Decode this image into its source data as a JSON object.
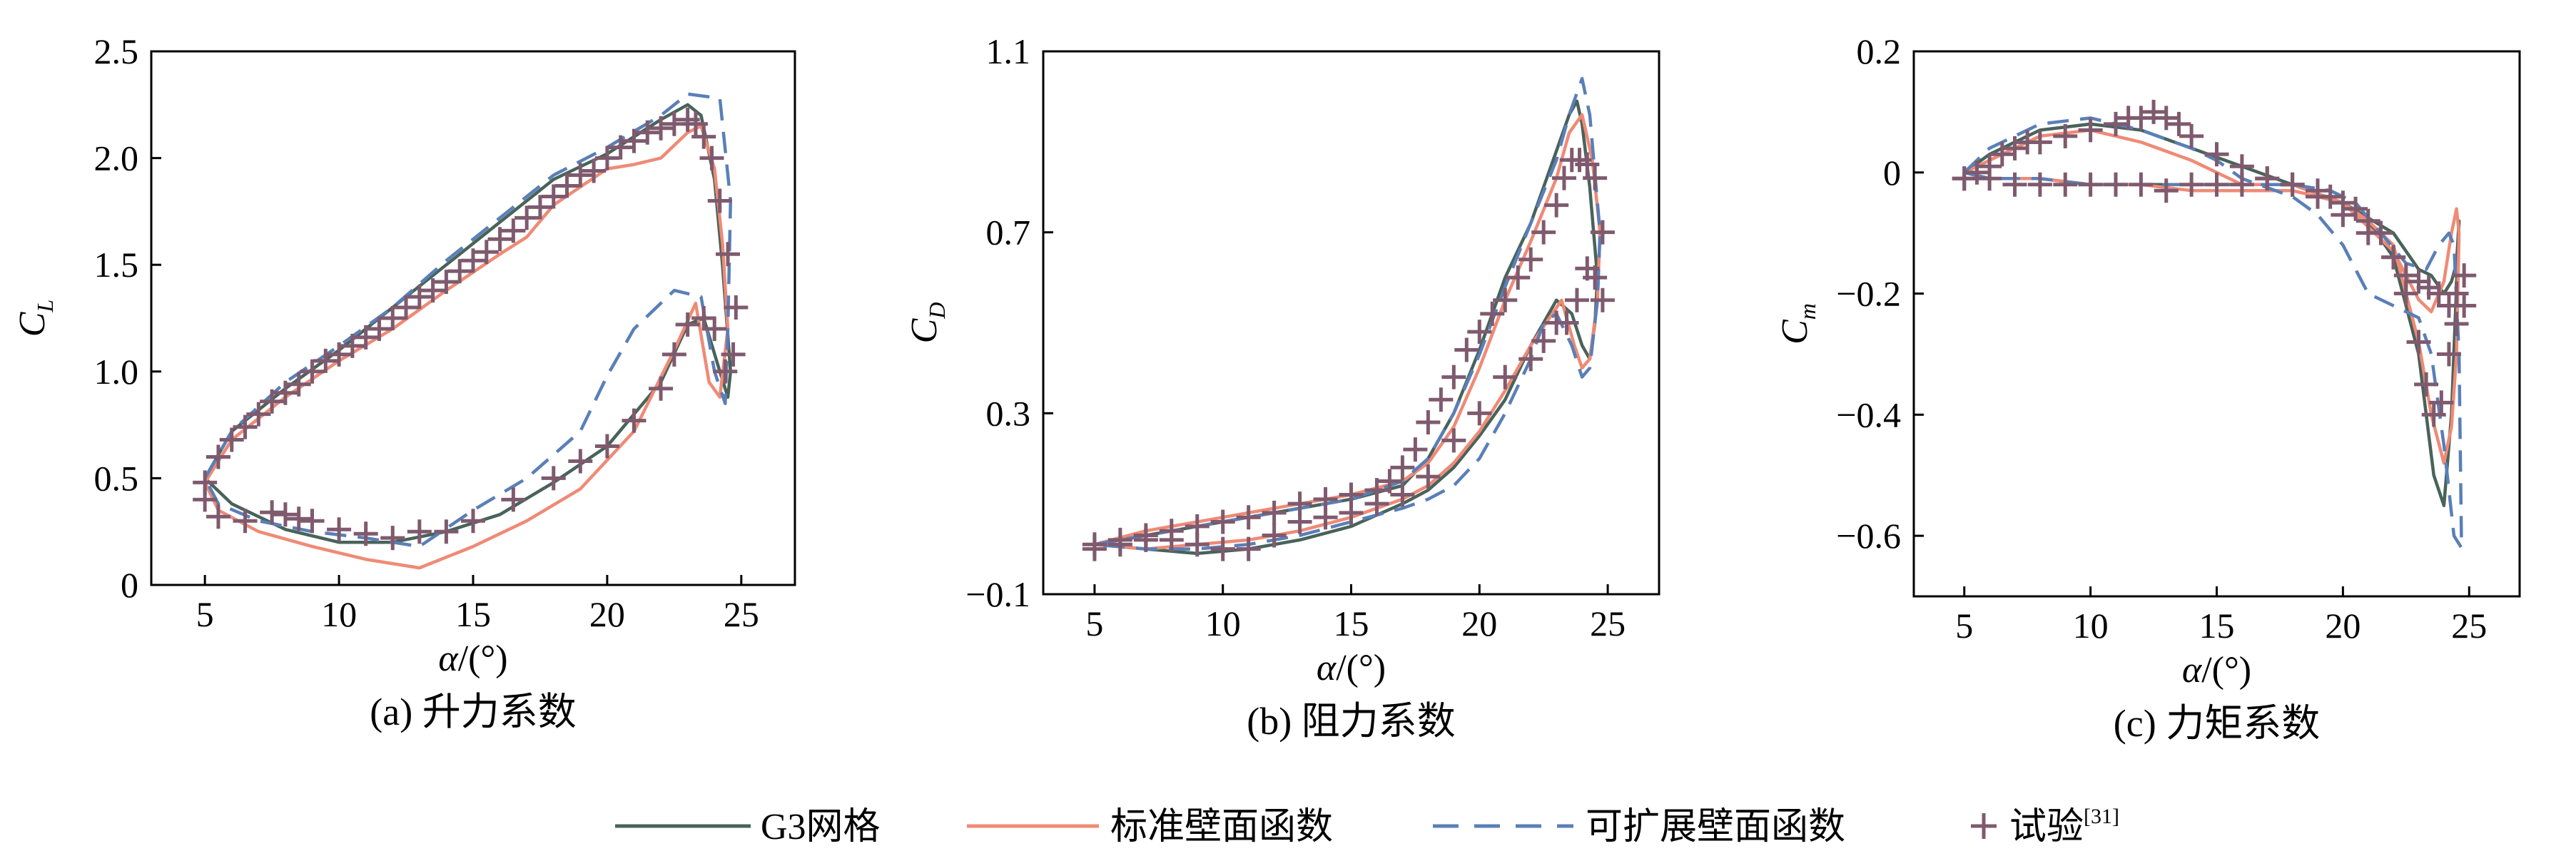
{
  "colors": {
    "g3": "#48635a",
    "standard": "#ef8a76",
    "scalable": "#5a7fb8",
    "exp": "#7f5a6e"
  },
  "legend": {
    "g3": "G3网格",
    "standard": "标准壁面函数",
    "scalable": "可扩展壁面函数",
    "exp": "试验",
    "exp_ref": "[31]"
  },
  "chart_data": [
    {
      "type": "line",
      "caption": "(a) 升力系数",
      "xlabel_sym": "α",
      "xlabel_unit": "/(°)",
      "ylabel_main": "C",
      "ylabel_sub": "L",
      "xlim": [
        3,
        27
      ],
      "ylim": [
        0,
        2.5
      ],
      "xticks": [
        5,
        10,
        15,
        20,
        25
      ],
      "yticks": [
        0,
        0.5,
        1.0,
        1.5,
        2.0,
        2.5
      ],
      "ytick_labels": [
        "0",
        "0.5",
        "1.0",
        "1.5",
        "2.0",
        "2.5"
      ],
      "series": [
        {
          "key": "g3",
          "dash": "solid",
          "x": [
            5,
            6,
            8,
            10,
            12,
            14,
            16,
            18,
            20,
            22,
            23,
            23.5,
            24,
            24.3,
            24.6,
            24.5,
            24.2,
            23.6,
            23,
            22,
            20,
            18,
            16,
            14,
            12,
            10,
            8,
            6,
            5
          ],
          "y": [
            0.5,
            0.72,
            0.92,
            1.1,
            1.3,
            1.5,
            1.7,
            1.9,
            2.02,
            2.18,
            2.25,
            2.2,
            1.9,
            1.5,
            1.0,
            0.88,
            1.0,
            1.25,
            1.22,
            0.95,
            0.65,
            0.48,
            0.33,
            0.25,
            0.2,
            0.2,
            0.26,
            0.38,
            0.5
          ]
        },
        {
          "key": "standard",
          "dash": "solid",
          "x": [
            5,
            6,
            8,
            10,
            12,
            14,
            16,
            17,
            18,
            20,
            21,
            22,
            23,
            23.5,
            24,
            24.3,
            24.5,
            24.2,
            23.8,
            23.3,
            22.5,
            21,
            19,
            17,
            15,
            13,
            11,
            9,
            7,
            5.5,
            5
          ],
          "y": [
            0.48,
            0.68,
            0.88,
            1.05,
            1.2,
            1.38,
            1.55,
            1.63,
            1.78,
            1.95,
            1.97,
            2.0,
            2.12,
            2.15,
            1.95,
            1.6,
            1.2,
            0.88,
            0.95,
            1.32,
            1.1,
            0.72,
            0.45,
            0.3,
            0.18,
            0.08,
            0.12,
            0.18,
            0.25,
            0.35,
            0.48
          ]
        },
        {
          "key": "scalable",
          "dash": "dash",
          "x": [
            5,
            6,
            8,
            10,
            12,
            14,
            16,
            18,
            20,
            22,
            23,
            24.2,
            24.6,
            24.5,
            24.4,
            24,
            23.5,
            22.5,
            21,
            20,
            19,
            17,
            15,
            13,
            11,
            9,
            7,
            5.5,
            5
          ],
          "y": [
            0.5,
            0.72,
            0.95,
            1.12,
            1.3,
            1.52,
            1.72,
            1.92,
            2.05,
            2.2,
            2.3,
            2.28,
            1.8,
            1.2,
            0.85,
            1.0,
            1.35,
            1.38,
            1.2,
            0.98,
            0.72,
            0.5,
            0.35,
            0.18,
            0.22,
            0.25,
            0.3,
            0.38,
            0.5
          ]
        }
      ],
      "experiment": {
        "x": [
          5.0,
          5.5,
          6.0,
          6.5,
          7.0,
          7.5,
          8.0,
          8.5,
          9.0,
          9.5,
          10.0,
          10.5,
          11.0,
          11.5,
          12.0,
          12.5,
          13.0,
          13.5,
          14.0,
          14.5,
          15.0,
          15.5,
          16.0,
          16.5,
          17.0,
          17.5,
          18.0,
          18.5,
          19.0,
          19.5,
          20.0,
          20.5,
          21.0,
          21.5,
          22.0,
          22.5,
          23.0,
          23.3,
          23.6,
          23.9,
          24.2,
          24.5,
          24.8,
          24.7,
          24.4,
          24.0,
          23.6,
          23.0,
          22.5,
          22.0,
          21.0,
          20.0,
          19.0,
          18.0,
          16.5,
          15.0,
          14.0,
          13.0,
          12.0,
          11.0,
          10.0,
          9.0,
          8.5,
          8.0,
          7.5,
          6.5,
          5.5,
          5.0
        ],
        "y": [
          0.48,
          0.6,
          0.68,
          0.74,
          0.8,
          0.86,
          0.9,
          0.94,
          1.0,
          1.05,
          1.08,
          1.12,
          1.16,
          1.2,
          1.25,
          1.3,
          1.35,
          1.38,
          1.42,
          1.47,
          1.52,
          1.56,
          1.62,
          1.66,
          1.72,
          1.77,
          1.82,
          1.87,
          1.92,
          1.94,
          2.0,
          2.05,
          2.08,
          2.12,
          2.14,
          2.16,
          2.18,
          2.16,
          2.1,
          2.0,
          1.8,
          1.55,
          1.3,
          1.08,
          1.0,
          1.2,
          1.25,
          1.22,
          1.08,
          0.92,
          0.77,
          0.65,
          0.58,
          0.5,
          0.4,
          0.3,
          0.25,
          0.25,
          0.22,
          0.24,
          0.26,
          0.3,
          0.31,
          0.33,
          0.34,
          0.3,
          0.32,
          0.4
        ]
      }
    },
    {
      "type": "line",
      "caption": "(b) 阻力系数",
      "xlabel_sym": "α",
      "xlabel_unit": "/(°)",
      "ylabel_main": "C",
      "ylabel_sub": "D",
      "xlim": [
        3,
        27
      ],
      "ylim": [
        -0.1,
        1.1
      ],
      "xticks": [
        5,
        10,
        15,
        20,
        25
      ],
      "yticks": [
        -0.1,
        0.3,
        0.7,
        1.1
      ],
      "ytick_labels": [
        "−0.1",
        "0.3",
        "0.7",
        "1.1"
      ],
      "series": [
        {
          "key": "g3",
          "dash": "solid",
          "x": [
            5,
            7,
            10,
            13,
            15,
            17,
            18,
            19,
            20,
            21,
            22,
            23,
            23.5,
            23.8,
            24,
            24.3,
            24.6,
            24.5,
            24.3,
            24,
            23.6,
            23,
            22,
            21,
            20,
            19,
            18,
            17,
            15,
            13,
            11,
            9,
            7,
            5
          ],
          "y": [
            0.01,
            0.03,
            0.06,
            0.09,
            0.11,
            0.14,
            0.2,
            0.3,
            0.44,
            0.6,
            0.72,
            0.88,
            0.96,
            0.99,
            0.94,
            0.8,
            0.6,
            0.5,
            0.42,
            0.45,
            0.52,
            0.55,
            0.45,
            0.33,
            0.25,
            0.18,
            0.13,
            0.1,
            0.05,
            0.02,
            0.0,
            -0.01,
            0.0,
            0.01
          ]
        },
        {
          "key": "standard",
          "dash": "solid",
          "x": [
            5,
            7,
            10,
            13,
            15,
            17,
            18,
            19,
            20,
            21,
            22,
            23,
            23.5,
            24,
            24.4,
            24.7,
            24.6,
            24.3,
            24.0,
            23.7,
            23.2,
            22,
            21,
            20,
            19,
            18,
            17,
            15,
            13,
            11,
            9,
            7,
            5
          ],
          "y": [
            0.01,
            0.04,
            0.07,
            0.1,
            0.12,
            0.15,
            0.19,
            0.27,
            0.4,
            0.55,
            0.68,
            0.82,
            0.92,
            0.96,
            0.86,
            0.7,
            0.55,
            0.42,
            0.4,
            0.45,
            0.55,
            0.45,
            0.35,
            0.26,
            0.19,
            0.14,
            0.11,
            0.07,
            0.04,
            0.02,
            0.01,
            0.0,
            0.01
          ]
        },
        {
          "key": "scalable",
          "dash": "dash",
          "x": [
            5,
            7,
            10,
            13,
            15,
            17,
            18,
            19,
            20,
            21,
            22,
            23,
            23.5,
            24,
            24.3,
            24.7,
            24.6,
            24.3,
            24,
            23.6,
            23,
            22.5,
            22,
            21,
            20,
            19,
            18,
            17,
            15,
            13,
            11,
            9,
            7,
            5
          ],
          "y": [
            0.01,
            0.03,
            0.06,
            0.09,
            0.11,
            0.15,
            0.2,
            0.3,
            0.43,
            0.58,
            0.72,
            0.86,
            0.96,
            1.04,
            0.96,
            0.7,
            0.55,
            0.4,
            0.38,
            0.45,
            0.52,
            0.5,
            0.42,
            0.3,
            0.2,
            0.14,
            0.11,
            0.09,
            0.06,
            0.03,
            0.01,
            0.0,
            0.0,
            0.01
          ]
        }
      ],
      "experiment": {
        "x": [
          5.0,
          6.0,
          7.0,
          8.0,
          9.0,
          10.0,
          11.0,
          12.0,
          13.0,
          14.0,
          15.0,
          16.0,
          16.5,
          17.0,
          17.5,
          18.0,
          18.5,
          19.0,
          19.5,
          20.0,
          20.5,
          21.0,
          21.5,
          22.0,
          22.5,
          23.0,
          23.3,
          23.6,
          23.9,
          24.2,
          24.5,
          24.8,
          24.8,
          24.5,
          24.2,
          23.8,
          23.4,
          23.0,
          22.5,
          22.0,
          21.0,
          20.0,
          19.0,
          18.0,
          17.0,
          16.0,
          15.0,
          14.0,
          13.0,
          12.0,
          11.0,
          10.0,
          9.0,
          8.0,
          7.0,
          6.0,
          5.0
        ],
        "y": [
          0.01,
          0.02,
          0.03,
          0.04,
          0.05,
          0.06,
          0.07,
          0.08,
          0.1,
          0.11,
          0.12,
          0.13,
          0.15,
          0.18,
          0.22,
          0.28,
          0.33,
          0.38,
          0.44,
          0.48,
          0.52,
          0.55,
          0.6,
          0.64,
          0.7,
          0.76,
          0.82,
          0.86,
          0.86,
          0.85,
          0.82,
          0.7,
          0.55,
          0.6,
          0.62,
          0.55,
          0.5,
          0.5,
          0.46,
          0.42,
          0.38,
          0.3,
          0.24,
          0.16,
          0.12,
          0.1,
          0.08,
          0.07,
          0.06,
          0.03,
          0.0,
          0.0,
          0.01,
          0.02,
          0.02,
          0.01,
          0.0
        ]
      }
    },
    {
      "type": "line",
      "caption": "(c) 力矩系数",
      "xlabel_sym": "α",
      "xlabel_unit": "/(°)",
      "ylabel_main": "C",
      "ylabel_sub": "m",
      "xlim": [
        3,
        27
      ],
      "ylim": [
        -0.7,
        0.2
      ],
      "xticks": [
        5,
        10,
        15,
        20,
        25
      ],
      "yticks": [
        -0.6,
        -0.4,
        -0.2,
        0,
        0.2
      ],
      "ytick_labels": [
        "−0.6",
        "−0.4",
        "−0.2",
        "0",
        "0.2"
      ],
      "series": [
        {
          "key": "g3",
          "dash": "solid",
          "x": [
            5,
            6,
            7,
            8,
            10,
            12,
            14,
            16,
            18,
            20,
            21,
            22,
            23,
            23.6,
            24,
            24.3,
            24.6,
            24.5,
            24.3,
            24,
            23.5,
            23,
            22,
            20,
            18,
            16,
            14,
            12,
            10,
            8,
            6,
            5
          ],
          "y": [
            0.0,
            0.03,
            0.05,
            0.07,
            0.08,
            0.07,
            0.04,
            0.01,
            -0.02,
            -0.05,
            -0.08,
            -0.14,
            -0.3,
            -0.5,
            -0.55,
            -0.4,
            -0.08,
            -0.15,
            -0.18,
            -0.2,
            -0.17,
            -0.16,
            -0.1,
            -0.05,
            -0.02,
            -0.02,
            -0.02,
            -0.02,
            -0.02,
            -0.01,
            -0.01,
            0.0
          ]
        },
        {
          "key": "standard",
          "dash": "solid",
          "x": [
            5,
            6,
            7,
            8,
            10,
            12,
            14,
            16,
            18,
            20,
            21,
            22,
            23,
            23.5,
            24,
            24.3,
            24.5,
            24.6,
            24.5,
            24.3,
            24,
            23.5,
            23,
            22,
            20,
            18,
            16,
            14,
            12,
            10,
            8,
            6,
            5
          ],
          "y": [
            0.0,
            0.02,
            0.04,
            0.06,
            0.07,
            0.05,
            0.02,
            -0.02,
            -0.02,
            -0.05,
            -0.08,
            -0.12,
            -0.28,
            -0.4,
            -0.48,
            -0.42,
            -0.3,
            -0.1,
            -0.06,
            -0.1,
            -0.18,
            -0.23,
            -0.21,
            -0.13,
            -0.05,
            -0.03,
            -0.03,
            -0.03,
            -0.02,
            -0.02,
            -0.01,
            -0.01,
            0.0
          ]
        },
        {
          "key": "scalable",
          "dash": "dash",
          "x": [
            5,
            6,
            7,
            8,
            10,
            12,
            14,
            15,
            16,
            18,
            19,
            20,
            21,
            22,
            23,
            23.5,
            24,
            24.4,
            24.7,
            24.6,
            24.4,
            24.2,
            23.8,
            23.3,
            22.5,
            21.5,
            20.5,
            19.5,
            18,
            16,
            14,
            12,
            10,
            8,
            6,
            5
          ],
          "y": [
            0.0,
            0.04,
            0.06,
            0.08,
            0.09,
            0.07,
            0.04,
            0.02,
            -0.01,
            -0.04,
            -0.07,
            -0.12,
            -0.2,
            -0.22,
            -0.24,
            -0.3,
            -0.45,
            -0.6,
            -0.62,
            -0.3,
            -0.12,
            -0.1,
            -0.12,
            -0.16,
            -0.15,
            -0.1,
            -0.05,
            -0.03,
            -0.02,
            -0.02,
            -0.02,
            -0.02,
            -0.02,
            -0.01,
            -0.01,
            0.0
          ]
        }
      ],
      "experiment": {
        "x": [
          5.0,
          5.5,
          6.0,
          6.5,
          7.0,
          7.5,
          8.0,
          9.0,
          10.0,
          11.0,
          11.5,
          12.0,
          12.5,
          13.0,
          13.5,
          14.0,
          15.0,
          16.0,
          17.0,
          18.0,
          19.0,
          19.5,
          20.0,
          20.5,
          21.0,
          21.5,
          22.0,
          22.5,
          23.0,
          23.3,
          23.6,
          23.9,
          24.2,
          24.5,
          24.8,
          24.8,
          24.5,
          24.2,
          23.8,
          23.4,
          23.0,
          22.5,
          22.0,
          21.0,
          20.0,
          19.0,
          18.0,
          17.0,
          16.0,
          15.0,
          14.0,
          13.0,
          12.0,
          11.0,
          10.0,
          9.0,
          8.0,
          7.0,
          6.0,
          5.0
        ],
        "y": [
          -0.01,
          0.0,
          0.01,
          0.03,
          0.04,
          0.05,
          0.05,
          0.06,
          0.07,
          0.08,
          0.09,
          0.09,
          0.1,
          0.09,
          0.08,
          0.06,
          0.03,
          0.01,
          -0.01,
          -0.02,
          -0.03,
          -0.04,
          -0.05,
          -0.06,
          -0.08,
          -0.1,
          -0.14,
          -0.2,
          -0.28,
          -0.35,
          -0.4,
          -0.38,
          -0.3,
          -0.2,
          -0.17,
          -0.22,
          -0.25,
          -0.22,
          -0.2,
          -0.19,
          -0.18,
          -0.17,
          -0.14,
          -0.1,
          -0.07,
          -0.04,
          -0.02,
          -0.01,
          -0.02,
          -0.02,
          -0.02,
          -0.03,
          -0.02,
          -0.02,
          -0.02,
          -0.02,
          -0.02,
          -0.02,
          -0.01,
          -0.01
        ]
      }
    }
  ]
}
